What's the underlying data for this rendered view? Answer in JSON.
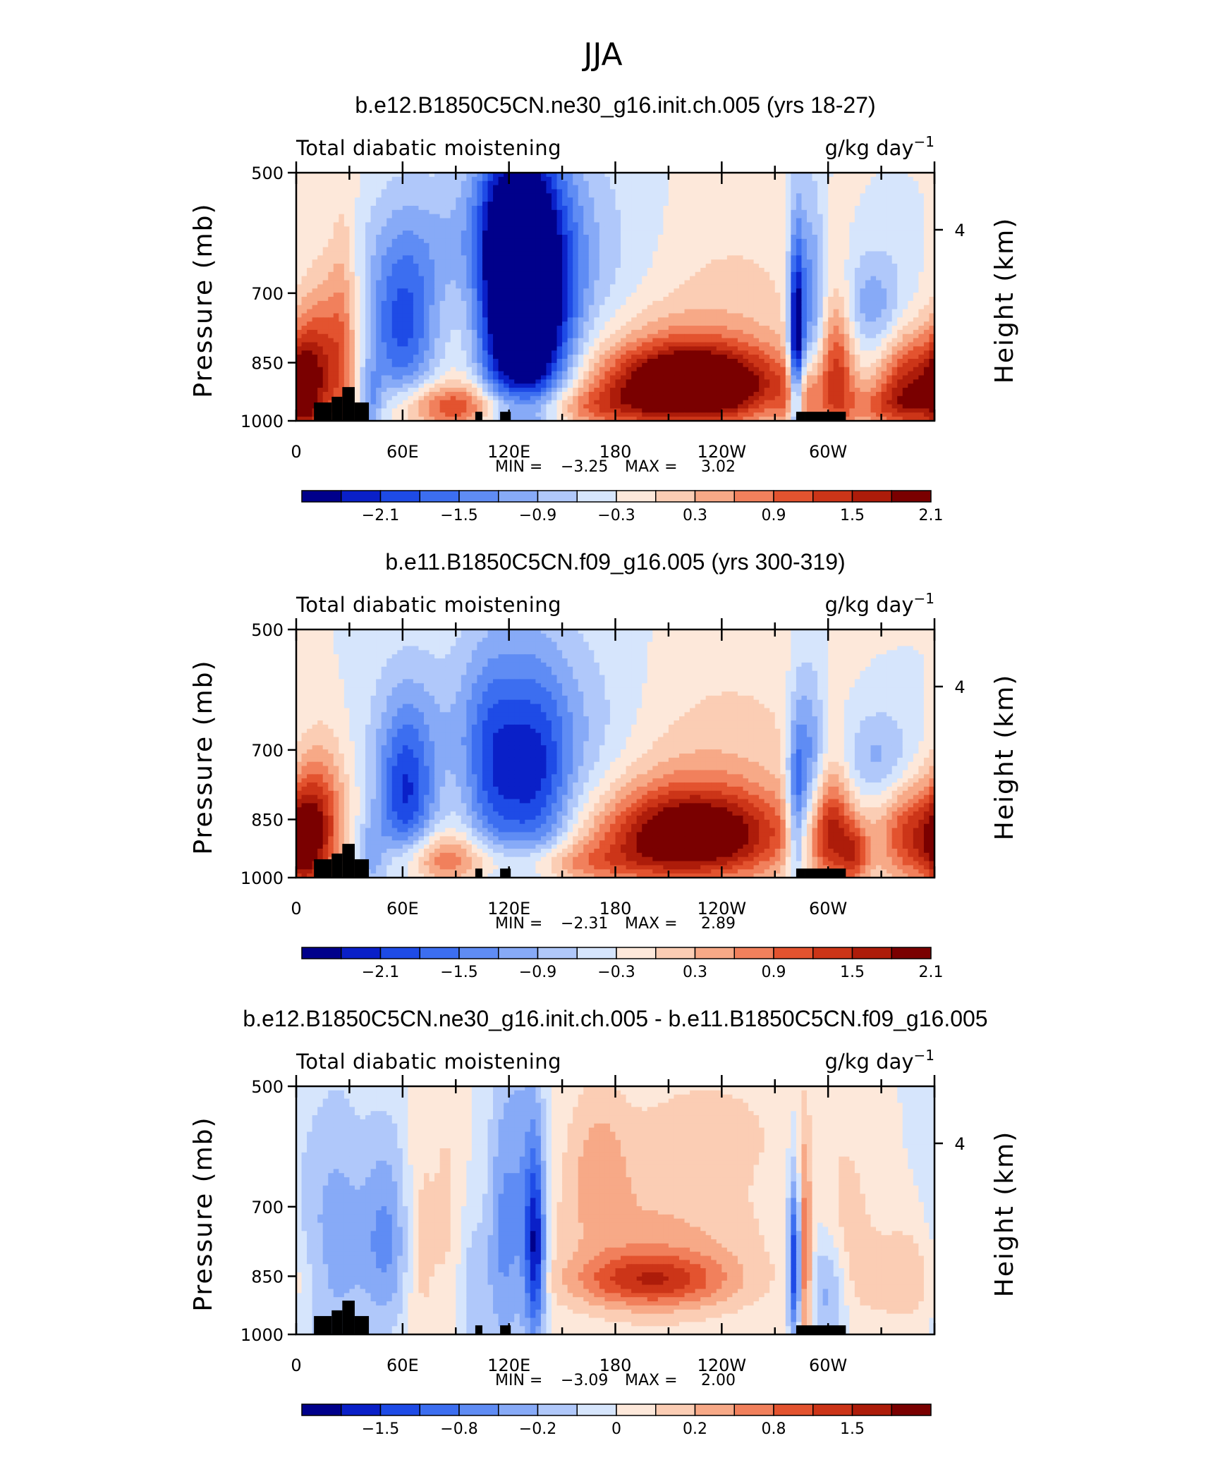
{
  "figure": {
    "title": "JJA",
    "land_color": "#000000"
  },
  "colorbar": {
    "colors": [
      "#00008b",
      "#0a20c8",
      "#1e4be6",
      "#3c6ef0",
      "#5f8cf4",
      "#87aaf7",
      "#b0c8fa",
      "#d6e5fc",
      "#fde8da",
      "#fbcdb4",
      "#f7a987",
      "#f1805c",
      "#e3532f",
      "#cc3518",
      "#ad1c0a",
      "#7a0000"
    ],
    "full_labels": [
      "−2.1",
      "−1.5",
      "−0.9",
      "−0.3",
      "0.3",
      "0.9",
      "1.5",
      "2.1"
    ],
    "diff_labels": [
      "−1.5",
      "−0.8",
      "−0.2",
      "0",
      "0.2",
      "0.8",
      "1.5"
    ]
  },
  "chart_data": [
    {
      "type": "heatmap",
      "title": "b.e12.B1850C5CN.ne30_g16.init.ch.005 (yrs 18-27)",
      "left_label": "Total diabatic moistening",
      "units": "g/kg day",
      "units_exp": "−1",
      "ylabel": "Pressure (mb)",
      "ylabel_right": "Height (km)",
      "yticks": [
        "500",
        "700",
        "850",
        "1000"
      ],
      "yticks_right": [
        "4"
      ],
      "xticks": [
        "0",
        "60E",
        "120E",
        "180",
        "120W",
        "60W"
      ],
      "xlim": [
        0,
        360
      ],
      "ylim": [
        1000,
        500
      ],
      "min_text": "MIN =",
      "min_value": "−3.25",
      "max_text": "MAX =",
      "max_value": "3.02",
      "cmin": -2.4,
      "step": 0.3,
      "features": [
        {
          "lon": 60,
          "p": 775,
          "amp": -1.6,
          "wl": 14,
          "wp": 130
        },
        {
          "lon": 113,
          "p": 730,
          "amp": -1.7,
          "wl": 10,
          "wp": 200
        },
        {
          "lon": 130,
          "p": 740,
          "amp": -2.3,
          "wl": 12,
          "wp": 220
        },
        {
          "lon": 144,
          "p": 760,
          "amp": -1.4,
          "wl": 14,
          "wp": 170
        },
        {
          "lon": 165,
          "p": 720,
          "amp": -0.6,
          "wl": 30,
          "wp": 160
        },
        {
          "lon": 125,
          "p": 560,
          "amp": -0.6,
          "wl": 25,
          "wp": 80
        },
        {
          "lon": 80,
          "p": 620,
          "amp": -0.4,
          "wl": 30,
          "wp": 80
        },
        {
          "lon": 225,
          "p": 905,
          "amp": 2.8,
          "wl": 32,
          "wp": 65
        },
        {
          "lon": 205,
          "p": 865,
          "amp": 1.0,
          "wl": 55,
          "wp": 120
        },
        {
          "lon": 150,
          "p": 965,
          "amp": 0.9,
          "wl": 40,
          "wp": 40
        },
        {
          "lon": 85,
          "p": 960,
          "amp": 1.2,
          "wl": 22,
          "wp": 45
        },
        {
          "lon": 15,
          "p": 860,
          "amp": 1.4,
          "wl": 9,
          "wp": 130
        },
        {
          "lon": 4,
          "p": 920,
          "amp": 1.3,
          "wl": 6,
          "wp": 100
        },
        {
          "lon": 27,
          "p": 800,
          "amp": 0.8,
          "wl": 6,
          "wp": 180
        },
        {
          "lon": 42,
          "p": 950,
          "amp": -0.9,
          "wl": 5,
          "wp": 60
        },
        {
          "lon": 282,
          "p": 820,
          "amp": -2.6,
          "wl": 3,
          "wp": 160
        },
        {
          "lon": 290,
          "p": 720,
          "amp": -1.2,
          "wl": 6,
          "wp": 140
        },
        {
          "lon": 285,
          "p": 940,
          "amp": 0.9,
          "wl": 8,
          "wp": 60
        },
        {
          "lon": 305,
          "p": 860,
          "amp": 1.4,
          "wl": 7,
          "wp": 120
        },
        {
          "lon": 325,
          "p": 730,
          "amp": -0.9,
          "wl": 14,
          "wp": 80
        },
        {
          "lon": 348,
          "p": 900,
          "amp": 1.9,
          "wl": 14,
          "wp": 90
        },
        {
          "lon": 330,
          "p": 960,
          "amp": 0.8,
          "wl": 20,
          "wp": 40
        },
        {
          "lon": 250,
          "p": 620,
          "amp": 0.2,
          "wl": 40,
          "wp": 100
        }
      ]
    },
    {
      "type": "heatmap",
      "title": "b.e11.B1850C5CN.f09_g16.005 (yrs 300-319)",
      "left_label": "Total diabatic moistening",
      "units": "g/kg day",
      "units_exp": "−1",
      "ylabel": "Pressure (mb)",
      "ylabel_right": "Height (km)",
      "yticks": [
        "500",
        "700",
        "850",
        "1000"
      ],
      "yticks_right": [
        "4"
      ],
      "xticks": [
        "0",
        "60E",
        "120E",
        "180",
        "120W",
        "60W"
      ],
      "xlim": [
        0,
        360
      ],
      "ylim": [
        1000,
        500
      ],
      "min_text": "MIN =",
      "min_value": "−2.31",
      "max_text": "MAX =",
      "max_value": "2.89",
      "cmin": -2.4,
      "step": 0.3,
      "features": [
        {
          "lon": 62,
          "p": 800,
          "amp": -1.8,
          "wl": 12,
          "wp": 130
        },
        {
          "lon": 110,
          "p": 770,
          "amp": -1.2,
          "wl": 12,
          "wp": 170
        },
        {
          "lon": 135,
          "p": 790,
          "amp": -1.4,
          "wl": 14,
          "wp": 170
        },
        {
          "lon": 155,
          "p": 760,
          "amp": -0.8,
          "wl": 30,
          "wp": 160
        },
        {
          "lon": 100,
          "p": 650,
          "amp": -0.4,
          "wl": 40,
          "wp": 100
        },
        {
          "lon": 225,
          "p": 890,
          "amp": 2.2,
          "wl": 35,
          "wp": 75
        },
        {
          "lon": 205,
          "p": 850,
          "amp": 0.9,
          "wl": 60,
          "wp": 130
        },
        {
          "lon": 150,
          "p": 960,
          "amp": 0.9,
          "wl": 35,
          "wp": 40
        },
        {
          "lon": 80,
          "p": 950,
          "amp": 1.1,
          "wl": 20,
          "wp": 50
        },
        {
          "lon": 15,
          "p": 850,
          "amp": 1.3,
          "wl": 10,
          "wp": 120
        },
        {
          "lon": 5,
          "p": 920,
          "amp": 1.2,
          "wl": 7,
          "wp": 100
        },
        {
          "lon": 42,
          "p": 940,
          "amp": -0.8,
          "wl": 6,
          "wp": 60
        },
        {
          "lon": 282,
          "p": 830,
          "amp": -1.5,
          "wl": 4,
          "wp": 140
        },
        {
          "lon": 290,
          "p": 720,
          "amp": -1.1,
          "wl": 6,
          "wp": 120
        },
        {
          "lon": 302,
          "p": 880,
          "amp": 1.5,
          "wl": 8,
          "wp": 100
        },
        {
          "lon": 315,
          "p": 940,
          "amp": 1.2,
          "wl": 6,
          "wp": 60
        },
        {
          "lon": 328,
          "p": 720,
          "amp": -0.8,
          "wl": 15,
          "wp": 70
        },
        {
          "lon": 350,
          "p": 890,
          "amp": 1.7,
          "wl": 15,
          "wp": 90
        },
        {
          "lon": 250,
          "p": 610,
          "amp": 0.2,
          "wl": 40,
          "wp": 100
        }
      ]
    },
    {
      "type": "heatmap",
      "title": "b.e12.B1850C5CN.ne30_g16.init.ch.005 - b.e11.B1850C5CN.f09_g16.005",
      "left_label": "Total diabatic moistening",
      "units": "g/kg day",
      "units_exp": "−1",
      "ylabel": "Pressure (mb)",
      "ylabel_right": "Height (km)",
      "yticks": [
        "500",
        "700",
        "850",
        "1000"
      ],
      "yticks_right": [
        "4"
      ],
      "xticks": [
        "0",
        "60E",
        "120E",
        "180",
        "120W",
        "60W"
      ],
      "xlim": [
        0,
        360
      ],
      "ylim": [
        1000,
        500
      ],
      "min_text": "MIN =",
      "min_value": "−3.09",
      "max_text": "MAX =",
      "max_value": "2.00",
      "cmin": -2.2,
      "step": 0.275,
      "features": [
        {
          "lon": 200,
          "p": 860,
          "amp": 1.2,
          "wl": 30,
          "wp": 45
        },
        {
          "lon": 205,
          "p": 780,
          "amp": 0.6,
          "wl": 45,
          "wp": 140
        },
        {
          "lon": 170,
          "p": 620,
          "amp": 0.5,
          "wl": 12,
          "wp": 100
        },
        {
          "lon": 135,
          "p": 790,
          "amp": -1.7,
          "wl": 4,
          "wp": 150
        },
        {
          "lon": 127,
          "p": 720,
          "amp": -0.8,
          "wl": 8,
          "wp": 220
        },
        {
          "lon": 115,
          "p": 780,
          "amp": -0.7,
          "wl": 6,
          "wp": 200
        },
        {
          "lon": 100,
          "p": 880,
          "amp": -0.5,
          "wl": 6,
          "wp": 120
        },
        {
          "lon": 50,
          "p": 770,
          "amp": -0.9,
          "wl": 10,
          "wp": 150
        },
        {
          "lon": 25,
          "p": 780,
          "amp": -0.6,
          "wl": 10,
          "wp": 200
        },
        {
          "lon": 8,
          "p": 800,
          "amp": -0.4,
          "wl": 10,
          "wp": 200
        },
        {
          "lon": 70,
          "p": 780,
          "amp": 0.4,
          "wl": 6,
          "wp": 200
        },
        {
          "lon": 85,
          "p": 700,
          "amp": 0.3,
          "wl": 6,
          "wp": 200
        },
        {
          "lon": 282,
          "p": 820,
          "amp": -2.3,
          "wl": 3,
          "wp": 130
        },
        {
          "lon": 286,
          "p": 820,
          "amp": 1.7,
          "wl": 3,
          "wp": 160
        },
        {
          "lon": 300,
          "p": 880,
          "amp": -0.8,
          "wl": 8,
          "wp": 100
        },
        {
          "lon": 310,
          "p": 750,
          "amp": 0.4,
          "wl": 10,
          "wp": 150
        },
        {
          "lon": 345,
          "p": 850,
          "amp": 0.5,
          "wl": 20,
          "wp": 90
        },
        {
          "lon": 235,
          "p": 560,
          "amp": 0.3,
          "wl": 30,
          "wp": 60
        }
      ]
    }
  ]
}
